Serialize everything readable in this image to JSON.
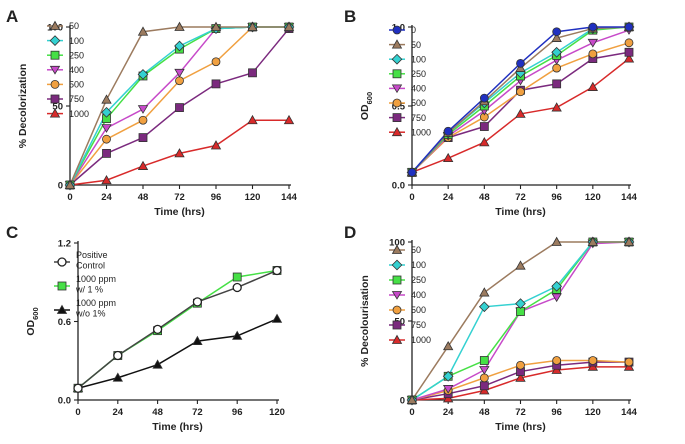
{
  "chart_data": [
    {
      "panel": "A",
      "type": "line",
      "xlabel": "Time (hrs)",
      "ylabel": "% Decolorization",
      "x": [
        0,
        24,
        48,
        72,
        96,
        120,
        144
      ],
      "x_ticks": [
        "0",
        "24",
        "48",
        "72",
        "96",
        "120",
        "144"
      ],
      "ylim": [
        0,
        100
      ],
      "y_ticks": [
        "0",
        "50",
        "100"
      ],
      "legend_position": "top-left",
      "series": [
        {
          "name": "50",
          "values": [
            0,
            54,
            97,
            100,
            100,
            100,
            100
          ],
          "color": "#9c7b5f",
          "marker": "triangle"
        },
        {
          "name": "100",
          "values": [
            0,
            46,
            70,
            88,
            99,
            100,
            100
          ],
          "color": "#34d1d1",
          "marker": "diamond"
        },
        {
          "name": "250",
          "values": [
            0,
            42,
            69,
            86,
            99,
            100,
            100
          ],
          "color": "#46e046",
          "marker": "square"
        },
        {
          "name": "400",
          "values": [
            0,
            36,
            48,
            71,
            99,
            100,
            100
          ],
          "color": "#c74ac9",
          "marker": "triangle-down"
        },
        {
          "name": "500",
          "values": [
            0,
            29,
            41,
            66,
            78,
            100,
            100
          ],
          "color": "#f0a040",
          "marker": "circle"
        },
        {
          "name": "750",
          "values": [
            0,
            20,
            30,
            49,
            64,
            71,
            99
          ],
          "color": "#7b2a7e",
          "marker": "square"
        },
        {
          "name": "1000",
          "values": [
            0,
            3,
            12,
            20,
            25,
            41,
            41
          ],
          "color": "#d82a2a",
          "marker": "triangle"
        }
      ]
    },
    {
      "panel": "B",
      "type": "line",
      "xlabel": "Time (hrs)",
      "ylabel": "OD",
      "ylabel_sub": "600",
      "x": [
        0,
        24,
        48,
        72,
        96,
        120,
        144
      ],
      "x_ticks": [
        "0",
        "24",
        "48",
        "72",
        "96",
        "120",
        "144"
      ],
      "ylim": [
        0,
        1.0
      ],
      "y_ticks": [
        "0.0",
        "0.5",
        "1.0"
      ],
      "legend_position": "top-left",
      "series": [
        {
          "name": "0",
          "values": [
            0.08,
            0.34,
            0.55,
            0.77,
            0.97,
            1.0,
            1.0
          ],
          "color": "#2030c0",
          "marker": "circle"
        },
        {
          "name": "50",
          "values": [
            0.08,
            0.33,
            0.53,
            0.74,
            0.93,
            0.99,
            1.0
          ],
          "color": "#9c7b5f",
          "marker": "triangle"
        },
        {
          "name": "100",
          "values": [
            0.08,
            0.33,
            0.52,
            0.71,
            0.84,
            0.99,
            1.0
          ],
          "color": "#34d1d1",
          "marker": "diamond"
        },
        {
          "name": "250",
          "values": [
            0.08,
            0.32,
            0.5,
            0.69,
            0.82,
            0.98,
            1.0
          ],
          "color": "#46e046",
          "marker": "square"
        },
        {
          "name": "400",
          "values": [
            0.08,
            0.31,
            0.47,
            0.66,
            0.79,
            0.9,
            0.98
          ],
          "color": "#c74ac9",
          "marker": "triangle-down"
        },
        {
          "name": "500",
          "values": [
            0.08,
            0.3,
            0.43,
            0.59,
            0.74,
            0.83,
            0.9
          ],
          "color": "#f0a040",
          "marker": "circle"
        },
        {
          "name": "750",
          "values": [
            0.08,
            0.3,
            0.37,
            0.6,
            0.64,
            0.8,
            0.84
          ],
          "color": "#7b2a7e",
          "marker": "square"
        },
        {
          "name": "1000",
          "values": [
            0.08,
            0.17,
            0.27,
            0.45,
            0.49,
            0.62,
            0.8
          ],
          "color": "#d82a2a",
          "marker": "triangle"
        }
      ]
    },
    {
      "panel": "C",
      "type": "line",
      "xlabel": "Time (hrs)",
      "ylabel": "OD",
      "ylabel_sub": "600",
      "x": [
        0,
        24,
        48,
        72,
        96,
        120
      ],
      "x_ticks": [
        "0",
        "24",
        "48",
        "72",
        "96",
        "120"
      ],
      "ylim": [
        0,
        1.2
      ],
      "y_ticks": [
        "0.0",
        "0.6",
        "1.2"
      ],
      "legend_position": "top-left",
      "series": [
        {
          "name": "Positive Control",
          "legend_lines": [
            "Positive",
            "Control"
          ],
          "values": [
            0.09,
            0.34,
            0.54,
            0.75,
            0.86,
            0.99
          ],
          "color": "#444444",
          "marker": "open-circle"
        },
        {
          "name": "1000 ppm w/ 1 %",
          "legend_lines": [
            "1000 ppm",
            "w/ 1 %"
          ],
          "values": [
            0.09,
            0.34,
            0.53,
            0.74,
            0.94,
            0.99
          ],
          "color": "#46e046",
          "marker": "square"
        },
        {
          "name": "1000 ppm w/o 1%",
          "legend_lines": [
            "1000 ppm",
            "w/o 1%"
          ],
          "values": [
            0.09,
            0.17,
            0.27,
            0.45,
            0.49,
            0.62
          ],
          "color": "#111111",
          "marker": "triangle"
        }
      ]
    },
    {
      "panel": "D",
      "type": "line",
      "xlabel": "Time (hrs)",
      "ylabel": "% Decolourisation",
      "x": [
        0,
        24,
        48,
        72,
        96,
        120,
        144
      ],
      "x_ticks": [
        "0",
        "24",
        "48",
        "72",
        "96",
        "120",
        "144"
      ],
      "ylim": [
        0,
        100
      ],
      "y_ticks": [
        "0",
        "50",
        "100"
      ],
      "legend_position": "top-left",
      "series": [
        {
          "name": "50",
          "values": [
            0,
            34,
            68,
            85,
            100,
            100,
            100
          ],
          "color": "#9c7b5f",
          "marker": "triangle"
        },
        {
          "name": "100",
          "values": [
            0,
            15,
            59,
            61,
            72,
            100,
            100
          ],
          "color": "#34d1d1",
          "marker": "diamond"
        },
        {
          "name": "250",
          "values": [
            0,
            15,
            25,
            56,
            70,
            100,
            100
          ],
          "color": "#46e046",
          "marker": "square"
        },
        {
          "name": "400",
          "values": [
            0,
            7,
            19,
            56,
            65,
            99,
            100
          ],
          "color": "#c74ac9",
          "marker": "triangle-down"
        },
        {
          "name": "500",
          "values": [
            0,
            6,
            14,
            22,
            25,
            25,
            24
          ],
          "color": "#f0a040",
          "marker": "circle"
        },
        {
          "name": "750",
          "values": [
            0,
            4,
            9,
            18,
            22,
            24,
            24
          ],
          "color": "#7b2a7e",
          "marker": "square"
        },
        {
          "name": "1000",
          "values": [
            0,
            1,
            6,
            14,
            19,
            21,
            21
          ],
          "color": "#d82a2a",
          "marker": "triangle"
        }
      ]
    }
  ]
}
